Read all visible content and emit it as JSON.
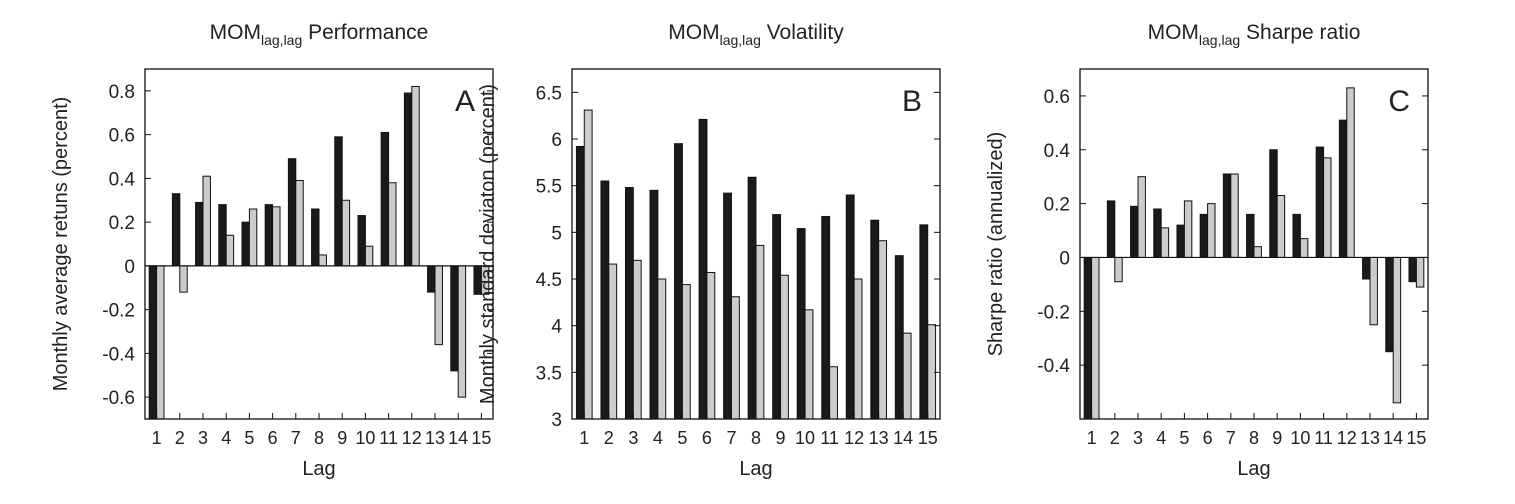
{
  "chart_data": [
    {
      "type": "bar",
      "title_main": "MOM",
      "title_sub": "lag,lag",
      "title_rest": " Performance",
      "panel_label": "A",
      "xlabel": "Lag",
      "ylabel": "Monthly average retuns (percent)",
      "categories": [
        "1",
        "2",
        "3",
        "4",
        "5",
        "6",
        "7",
        "8",
        "9",
        "10",
        "11",
        "12",
        "13",
        "14",
        "15"
      ],
      "ylim": [
        -0.7,
        0.9
      ],
      "yticks": [
        -0.6,
        -0.4,
        -0.2,
        0,
        0.2,
        0.4,
        0.6,
        0.8
      ],
      "ytick_labels": [
        "-0.6",
        "-0.4",
        "-0.2",
        "0",
        "0.2",
        "0.4",
        "0.6",
        "0.8"
      ],
      "series": [
        {
          "color": "#1a1a1a",
          "values": [
            -0.7,
            0.33,
            0.29,
            0.28,
            0.2,
            0.28,
            0.49,
            0.26,
            0.59,
            0.23,
            0.61,
            0.79,
            -0.12,
            -0.48,
            -0.13
          ]
        },
        {
          "color": "#cccccc",
          "values": [
            -0.7,
            -0.12,
            0.41,
            0.14,
            0.26,
            0.27,
            0.39,
            0.05,
            0.3,
            0.09,
            0.38,
            0.82,
            -0.36,
            -0.6,
            -0.13
          ]
        }
      ]
    },
    {
      "type": "bar",
      "title_main": "MOM",
      "title_sub": "lag,lag",
      "title_rest": " Volatility",
      "panel_label": "B",
      "xlabel": "Lag",
      "ylabel": "Monthly standard deviaton (percent)",
      "categories": [
        "1",
        "2",
        "3",
        "4",
        "5",
        "6",
        "7",
        "8",
        "9",
        "10",
        "11",
        "12",
        "13",
        "14",
        "15"
      ],
      "ylim": [
        3,
        6.75
      ],
      "yticks": [
        3,
        3.5,
        4,
        4.5,
        5,
        5.5,
        6,
        6.5
      ],
      "ytick_labels": [
        "3",
        "3.5",
        "4",
        "4.5",
        "5",
        "5.5",
        "6",
        "6.5"
      ],
      "series": [
        {
          "color": "#1a1a1a",
          "values": [
            5.92,
            5.55,
            5.48,
            5.45,
            5.95,
            6.21,
            5.42,
            5.59,
            5.19,
            5.04,
            5.17,
            5.4,
            5.13,
            4.75,
            5.08
          ]
        },
        {
          "color": "#cccccc",
          "values": [
            6.31,
            4.66,
            4.7,
            4.5,
            4.44,
            4.57,
            4.31,
            4.86,
            4.54,
            4.17,
            3.56,
            4.5,
            4.91,
            3.92,
            4.01
          ]
        }
      ]
    },
    {
      "type": "bar",
      "title_main": "MOM",
      "title_sub": "lag,lag",
      "title_rest": " Sharpe ratio",
      "panel_label": "C",
      "xlabel": "Lag",
      "ylabel": "Sharpe ratio (annualized)",
      "categories": [
        "1",
        "2",
        "3",
        "4",
        "5",
        "6",
        "7",
        "8",
        "9",
        "10",
        "11",
        "12",
        "13",
        "14",
        "15"
      ],
      "ylim": [
        -0.6,
        0.7
      ],
      "yticks": [
        -0.4,
        -0.2,
        0,
        0.2,
        0.4,
        0.6
      ],
      "ytick_labels": [
        "-0.4",
        "-0.2",
        "0",
        "0.2",
        "0.4",
        "0.6"
      ],
      "series": [
        {
          "color": "#1a1a1a",
          "values": [
            -0.6,
            0.21,
            0.19,
            0.18,
            0.12,
            0.16,
            0.31,
            0.16,
            0.4,
            0.16,
            0.41,
            0.51,
            -0.08,
            -0.35,
            -0.09
          ]
        },
        {
          "color": "#cccccc",
          "values": [
            -0.6,
            -0.09,
            0.3,
            0.11,
            0.21,
            0.2,
            0.31,
            0.04,
            0.23,
            0.07,
            0.37,
            0.63,
            -0.25,
            -0.54,
            -0.11
          ]
        }
      ]
    }
  ]
}
